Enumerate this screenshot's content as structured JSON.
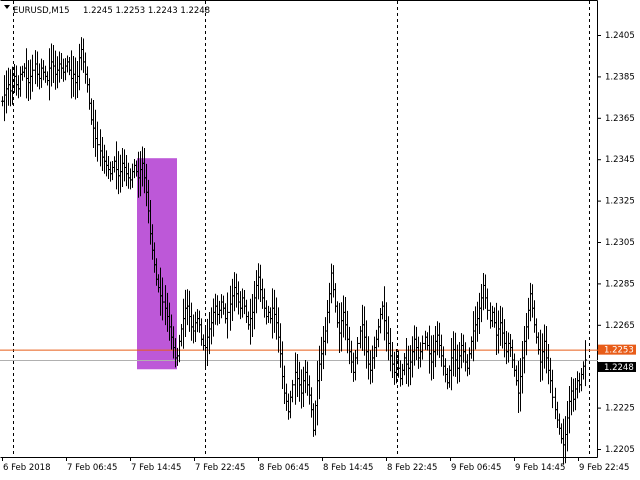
{
  "header": {
    "symbol": "EURUSD,M15",
    "ohlc": "1.2245 1.2253 1.2243 1.2248"
  },
  "price_tags": {
    "ask": "1.2253",
    "bid": "1.2248"
  },
  "colors": {
    "background": "#ffffff",
    "bars": "#000000",
    "ask_line": "#e85c18",
    "bid_line": "#b0b0b0",
    "highlight": "#b94fd6",
    "grid": "#000000"
  },
  "chart_data": {
    "type": "ohlc",
    "symbol": "EURUSD",
    "timeframe": "M15",
    "y_ticks": [
      "1.2405",
      "1.2385",
      "1.2365",
      "1.2345",
      "1.2325",
      "1.2305",
      "1.2285",
      "1.2265",
      "1.2245",
      "1.2225",
      "1.2205"
    ],
    "y_tick_values": [
      1.2405,
      1.2385,
      1.2365,
      1.2345,
      1.2325,
      1.2305,
      1.2285,
      1.2265,
      1.2245,
      1.2225,
      1.2205
    ],
    "x_ticks": [
      "6 Feb 2018",
      "7 Feb 06:45",
      "7 Feb 14:45",
      "7 Feb 22:45",
      "8 Feb 06:45",
      "8 Feb 14:45",
      "8 Feb 22:45",
      "9 Feb 06:45",
      "9 Feb 14:45",
      "9 Feb 22:45"
    ],
    "ylim": [
      1.2198,
      1.2418
    ],
    "ask": 1.2253,
    "bid": 1.2248,
    "vertical_separators": [
      "6 Feb 2018",
      "7 Feb 22:45",
      "8 Feb 22:45",
      "9 Feb 22:45"
    ],
    "highlight_zone": {
      "from_bar": 67,
      "to_bar": 86,
      "price_high": 1.2345,
      "price_low": 1.2244
    },
    "closes": [
      1.2373,
      1.2376,
      1.2379,
      1.2381,
      1.2378,
      1.2383,
      1.2385,
      1.2381,
      1.2379,
      1.2386,
      1.2387,
      1.2389,
      1.2384,
      1.2382,
      1.2385,
      1.2388,
      1.2391,
      1.2386,
      1.2384,
      1.2389,
      1.2387,
      1.2385,
      1.2383,
      1.2389,
      1.2392,
      1.239,
      1.2386,
      1.2388,
      1.2391,
      1.2389,
      1.2387,
      1.239,
      1.2392,
      1.2388,
      1.2384,
      1.2386,
      1.2382,
      1.2385,
      1.2394,
      1.2398,
      1.2392,
      1.2386,
      1.2381,
      1.2372,
      1.2364,
      1.236,
      1.2355,
      1.2352,
      1.2349,
      1.2346,
      1.2344,
      1.2342,
      1.234,
      1.2338,
      1.2341,
      1.2344,
      1.234,
      1.2337,
      1.2339,
      1.2343,
      1.2341,
      1.2338,
      1.2336,
      1.2335,
      1.2339,
      1.2342,
      1.2339,
      1.2336,
      1.234,
      1.2343,
      1.2336,
      1.2329,
      1.232,
      1.2309,
      1.2301,
      1.2294,
      1.2287,
      1.2283,
      1.2279,
      1.2276,
      1.2273,
      1.2269,
      1.2264,
      1.2259,
      1.2254,
      1.2249,
      1.225,
      1.2257,
      1.2263,
      1.2268,
      1.2273,
      1.2274,
      1.2269,
      1.2264,
      1.2262,
      1.2266,
      1.2268,
      1.2265,
      1.2258,
      1.2255,
      1.2254,
      1.2259,
      1.2263,
      1.2266,
      1.2271,
      1.2274,
      1.227,
      1.2272,
      1.2276,
      1.2273,
      1.2268,
      1.2271,
      1.2275,
      1.2279,
      1.2283,
      1.228,
      1.2276,
      1.2273,
      1.2278,
      1.2274,
      1.2269,
      1.2265,
      1.2268,
      1.2271,
      1.2278,
      1.2284,
      1.2288,
      1.2282,
      1.2278,
      1.2273,
      1.2269,
      1.2271,
      1.2268,
      1.2273,
      1.227,
      1.2266,
      1.2259,
      1.2251,
      1.224,
      1.2232,
      1.2228,
      1.2223,
      1.223,
      1.2236,
      1.2242,
      1.2239,
      1.2236,
      1.2232,
      1.2238,
      1.2242,
      1.2236,
      1.2231,
      1.2224,
      1.2214,
      1.2226,
      1.2238,
      1.2246,
      1.2251,
      1.2257,
      1.2262,
      1.2271,
      1.228,
      1.229,
      1.2282,
      1.2274,
      1.2266,
      1.2261,
      1.2267,
      1.2271,
      1.2265,
      1.2258,
      1.2252,
      1.2247,
      1.2242,
      1.2249,
      1.2256,
      1.2262,
      1.2265,
      1.2259,
      1.2252,
      1.2246,
      1.2243,
      1.2249,
      1.2254,
      1.2258,
      1.2264,
      1.227,
      1.2274,
      1.2267,
      1.2261,
      1.2256,
      1.225,
      1.2246,
      1.2242,
      1.2248,
      1.2244,
      1.2239,
      1.2243,
      1.2249,
      1.2246,
      1.2244,
      1.2247,
      1.2252,
      1.2258,
      1.2254,
      1.2249,
      1.2252,
      1.2256,
      1.2259,
      1.2255,
      1.2251,
      1.2247,
      1.2252,
      1.2257,
      1.226,
      1.2255,
      1.225,
      1.2245,
      1.2241,
      1.2237,
      1.2243,
      1.2249,
      1.2253,
      1.2248,
      1.2244,
      1.225,
      1.2255,
      1.2252,
      1.2247,
      1.2244,
      1.2251,
      1.2257,
      1.2262,
      1.2265,
      1.2268,
      1.2273,
      1.2278,
      1.2284,
      1.2278,
      1.2272,
      1.2267,
      1.2271,
      1.2266,
      1.226,
      1.2263,
      1.2266,
      1.2261,
      1.2256,
      1.2252,
      1.2256,
      1.2254,
      1.2248,
      1.2243,
      1.2238,
      1.2232,
      1.224,
      1.2249,
      1.2257,
      1.2264,
      1.2272,
      1.228,
      1.2273,
      1.2265,
      1.2259,
      1.2253,
      1.2247,
      1.2252,
      1.2257,
      1.2249,
      1.2243,
      1.2238,
      1.223,
      1.2224,
      1.2219,
      1.2215,
      1.221,
      1.2207,
      1.2212,
      1.222,
      1.2228,
      1.2233,
      1.2229,
      1.2234,
      1.2238,
      1.2236,
      1.2241,
      1.2245,
      1.2248
    ]
  }
}
